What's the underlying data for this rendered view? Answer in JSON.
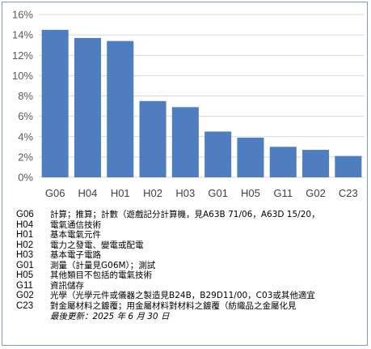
{
  "chart_data": {
    "type": "bar",
    "categories": [
      "G06",
      "H04",
      "H01",
      "H02",
      "H03",
      "G01",
      "H05",
      "G11",
      "G02",
      "C23"
    ],
    "values": [
      14.5,
      13.7,
      13.4,
      7.5,
      6.9,
      4.5,
      3.9,
      3.0,
      2.7,
      2.1
    ],
    "yticks": [
      "0%",
      "2%",
      "4%",
      "6%",
      "8%",
      "10%",
      "12%",
      "14%",
      "16%"
    ],
    "ylim": [
      0,
      16
    ],
    "bar_color": "#4f7ec0",
    "grid_color": "#d9d9d9",
    "grid": true
  },
  "legend": [
    {
      "code": "G06",
      "desc": "計算；推算；計數（遊戲記分計算機，見A63B 71/06，A63D 15/20，"
    },
    {
      "code": "H04",
      "desc": "電氣通信技術"
    },
    {
      "code": "H01",
      "desc": "基本電氣元件"
    },
    {
      "code": "H02",
      "desc": "電力之發電、變電或配電"
    },
    {
      "code": "H03",
      "desc": "基本電子電路"
    },
    {
      "code": "G01",
      "desc": "測量（計量見G06M）；測試"
    },
    {
      "code": "H05",
      "desc": "其他類目不包括的電氣技術"
    },
    {
      "code": "G11",
      "desc": "資訊儲存"
    },
    {
      "code": "G02",
      "desc": "光學（光學元件或儀器之製造見B24B，B29D11/00，C03或其他適宜"
    },
    {
      "code": "C23",
      "desc": "對金屬材料之鍍覆；用金屬材料對材料之鍍覆（紡織品之金屬化見"
    }
  ],
  "updated": "最後更新：2025 年 6 月 30 日",
  "frame_color": "#7a9cc6"
}
